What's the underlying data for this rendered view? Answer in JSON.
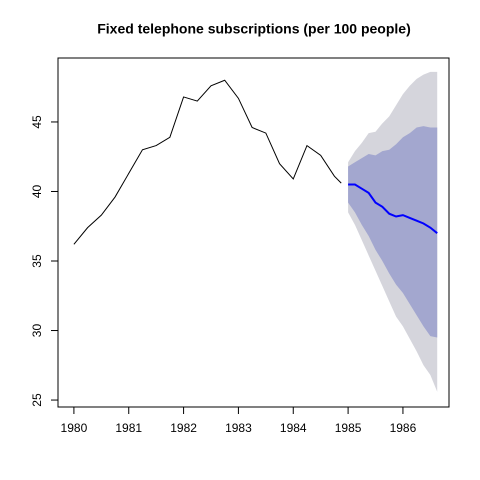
{
  "chart_data": {
    "type": "line",
    "title": "Fixed telephone subscriptions (per 100 people)",
    "xlim": [
      1979.71,
      1986.84
    ],
    "ylim": [
      24.5,
      49.6
    ],
    "xticks": [
      1980,
      1981,
      1982,
      1983,
      1984,
      1985,
      1986
    ],
    "yticks": [
      25,
      30,
      35,
      40,
      45
    ],
    "series": [
      {
        "color": "#000000",
        "x": [
          1980,
          1980.25,
          1980.5,
          1980.75,
          1981,
          1981.25,
          1981.5,
          1981.75,
          1982,
          1982.25,
          1982.5,
          1982.75,
          1983,
          1983.25,
          1983.5,
          1983.75,
          1984,
          1984.25,
          1984.5,
          1984.75,
          1984.875
        ],
        "values": [
          36.2,
          37.4,
          38.3,
          39.6,
          41.3,
          43.0,
          43.3,
          43.9,
          46.8,
          46.5,
          47.6,
          48.0,
          46.7,
          44.6,
          44.2,
          42.0,
          40.9,
          43.3,
          42.6,
          41.1,
          40.6
        ]
      },
      {
        "color": "#0000ff",
        "x": [
          1985,
          1985.125,
          1985.25,
          1985.375,
          1985.5,
          1985.625,
          1985.75,
          1985.875,
          1986,
          1986.125,
          1986.25,
          1986.375,
          1986.5,
          1986.625
        ],
        "values": [
          40.5,
          40.5,
          40.2,
          39.9,
          39.2,
          38.9,
          38.4,
          38.2,
          38.3,
          38.1,
          37.9,
          37.7,
          37.4,
          37.0
        ]
      }
    ],
    "bands": [
      {
        "color": "#d5d5dc",
        "lower": [
          38.5,
          37.6,
          36.5,
          35.4,
          34.3,
          33.2,
          32.1,
          31.0,
          30.3,
          29.4,
          28.5,
          27.5,
          26.8,
          25.6
        ],
        "upper": [
          42.1,
          42.9,
          43.5,
          44.2,
          44.3,
          44.9,
          45.4,
          46.2,
          47.0,
          47.6,
          48.1,
          48.4,
          48.6,
          48.6
        ]
      },
      {
        "color": "#a3a7cf",
        "lower": [
          39.2,
          38.5,
          37.6,
          36.8,
          35.8,
          35.0,
          34.1,
          33.3,
          32.7,
          31.9,
          31.1,
          30.3,
          29.6,
          29.5
        ],
        "upper": [
          41.8,
          42.1,
          42.4,
          42.7,
          42.6,
          42.9,
          43.0,
          43.4,
          43.9,
          44.2,
          44.6,
          44.7,
          44.6,
          44.6
        ]
      }
    ]
  }
}
